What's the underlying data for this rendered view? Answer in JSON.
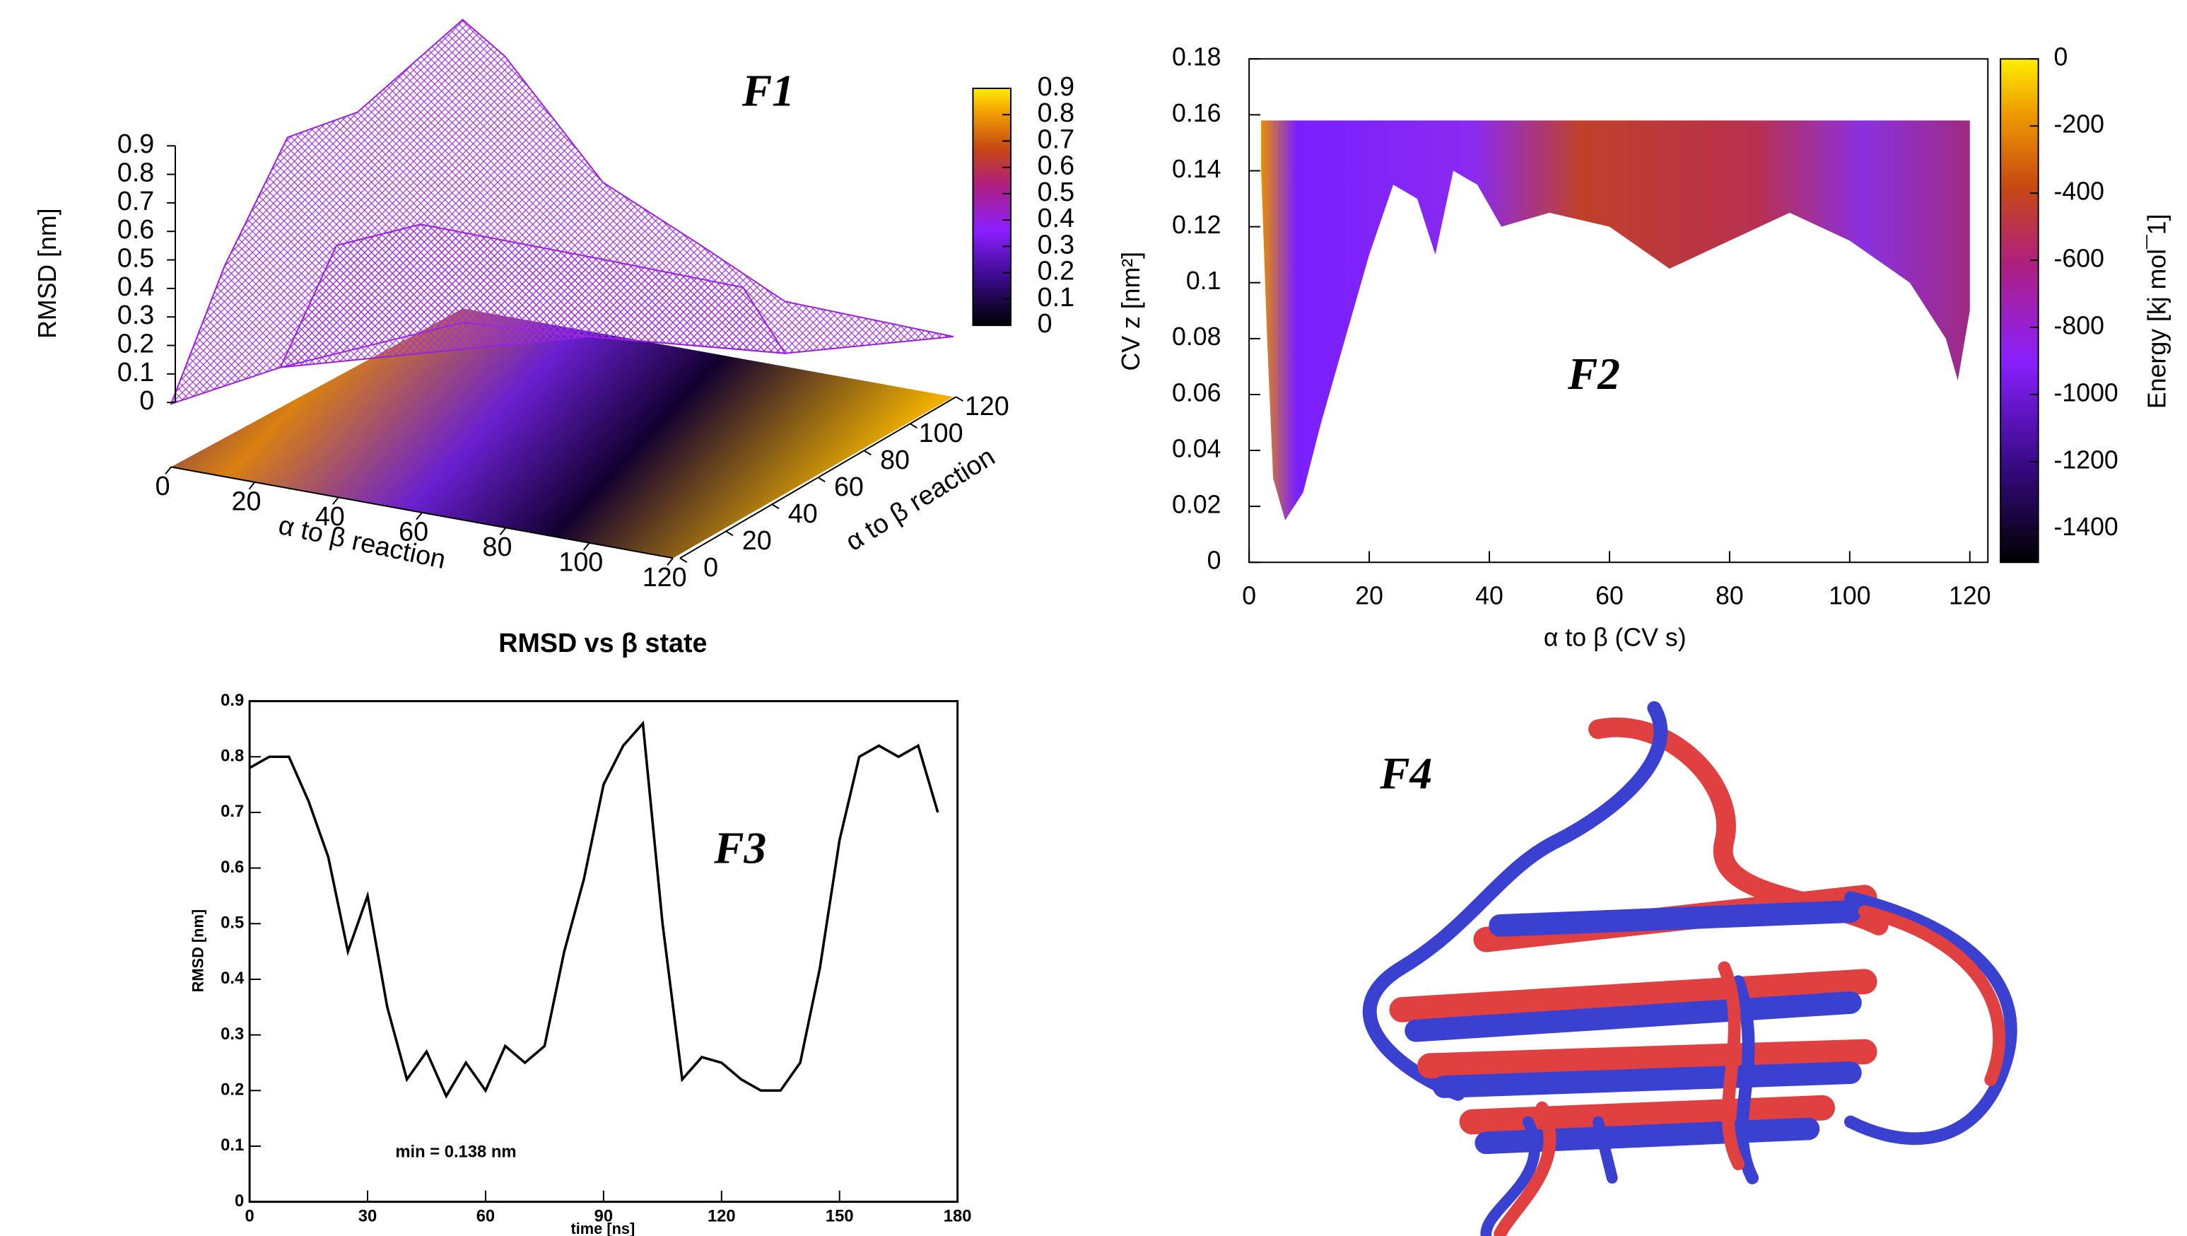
{
  "chart_data": [
    {
      "type": "surface3d",
      "label": "F1",
      "zlabel": "RMSD [nm]",
      "xlabel": "α to β reaction",
      "ylabel": "α to β reaction",
      "xlim": [
        0,
        120
      ],
      "xticks": [
        0,
        20,
        40,
        60,
        80,
        100,
        120
      ],
      "ylim": [
        0,
        120
      ],
      "yticks": [
        0,
        20,
        40,
        60,
        80,
        100,
        120
      ],
      "zlim": [
        0,
        0.9
      ],
      "zticks": [
        0,
        0.1,
        0.2,
        0.3,
        0.4,
        0.5,
        0.6,
        0.7,
        0.8,
        0.9
      ],
      "clim": [
        0,
        0.9
      ],
      "cticks": [
        0,
        0.1,
        0.2,
        0.3,
        0.4,
        0.5,
        0.6,
        0.7,
        0.8,
        0.9
      ]
    },
    {
      "type": "heatmap",
      "label": "F2",
      "xlabel": "α to β (CV s)",
      "ylabel": "CV z [nm²]",
      "colorbar_label": "Energy [kj mol¯1]",
      "xlim": [
        0,
        123
      ],
      "xticks": [
        0,
        20,
        40,
        60,
        80,
        100,
        120
      ],
      "ylim": [
        0,
        0.18
      ],
      "yticks": [
        0,
        0.02,
        0.04,
        0.06,
        0.08,
        0.1,
        0.12,
        0.14,
        0.16,
        0.18
      ],
      "clim": [
        -1500,
        0
      ],
      "cticks": [
        0,
        -200,
        -400,
        -600,
        -800,
        -1000,
        -1200,
        -1400
      ],
      "region": {
        "x": [
          2,
          3,
          4,
          6,
          9,
          12,
          16,
          20,
          24,
          28,
          31,
          34,
          38,
          42,
          50,
          60,
          70,
          80,
          90,
          100,
          110,
          116,
          118,
          120,
          120,
          2
        ],
        "y": [
          0.14,
          0.08,
          0.03,
          0.015,
          0.025,
          0.05,
          0.08,
          0.11,
          0.135,
          0.13,
          0.11,
          0.14,
          0.135,
          0.12,
          0.125,
          0.12,
          0.105,
          0.115,
          0.125,
          0.115,
          0.1,
          0.08,
          0.065,
          0.09,
          0.158,
          0.158
        ]
      }
    },
    {
      "type": "line",
      "title": "RMSD vs  β state",
      "label": "F3",
      "xlabel": "time [ns]",
      "ylabel": "RMSD [nm]",
      "annotation": "min = 0.138 nm",
      "color": "#000000",
      "x": [
        0,
        5,
        10,
        15,
        20,
        25,
        30,
        35,
        40,
        45,
        50,
        55,
        60,
        65,
        70,
        75,
        80,
        85,
        90,
        95,
        100,
        105,
        110,
        115,
        120,
        125,
        130,
        135,
        140,
        145,
        150,
        155,
        160,
        165,
        170,
        175
      ],
      "y": [
        0.78,
        0.8,
        0.8,
        0.72,
        0.62,
        0.45,
        0.55,
        0.35,
        0.22,
        0.27,
        0.19,
        0.25,
        0.2,
        0.28,
        0.25,
        0.28,
        0.45,
        0.58,
        0.75,
        0.82,
        0.86,
        0.5,
        0.22,
        0.26,
        0.25,
        0.22,
        0.2,
        0.2,
        0.25,
        0.42,
        0.65,
        0.8,
        0.82,
        0.8,
        0.82,
        0.7
      ],
      "xlim": [
        0,
        180
      ],
      "xticks": [
        0,
        30,
        60,
        90,
        120,
        150,
        180
      ],
      "ylim": [
        0,
        0.9
      ],
      "yticks": [
        0,
        0.1,
        0.2,
        0.3,
        0.4,
        0.5,
        0.6,
        0.7,
        0.8,
        0.9
      ]
    }
  ],
  "image": {
    "label": "F4"
  }
}
